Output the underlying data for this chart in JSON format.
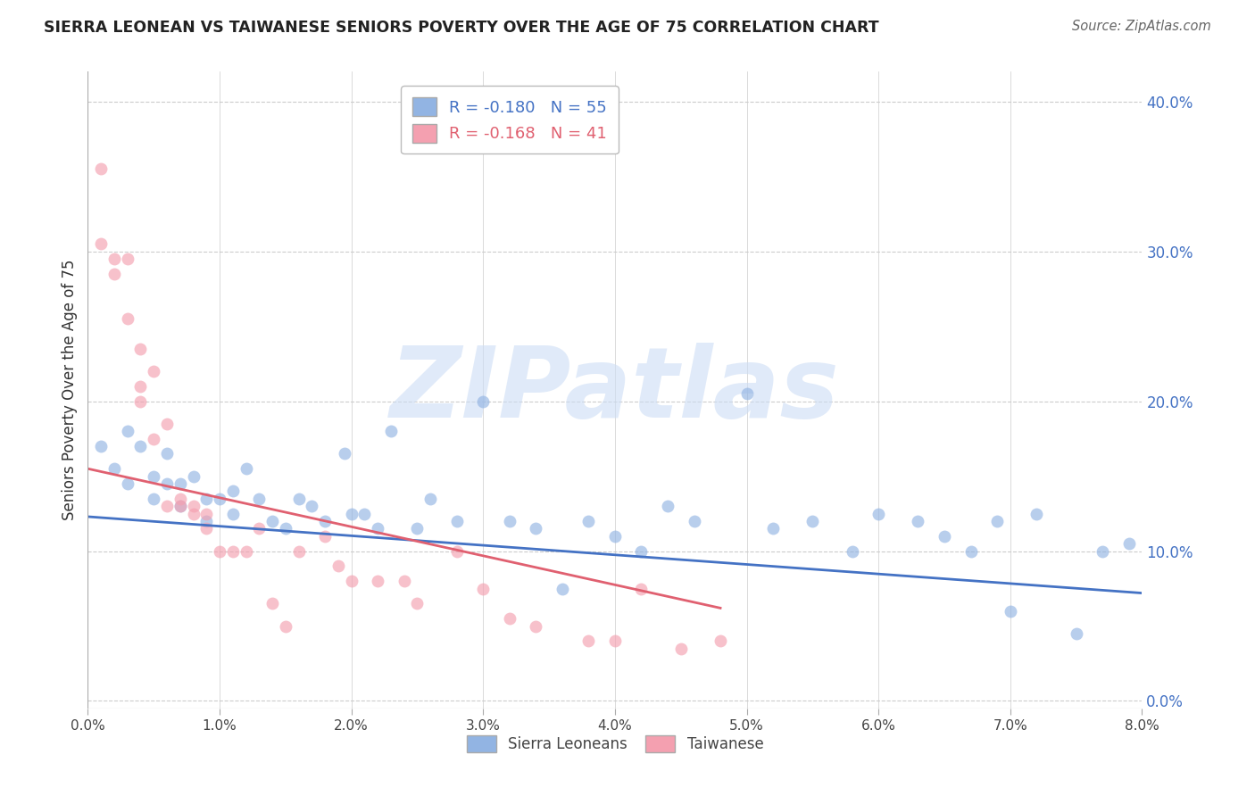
{
  "title": "SIERRA LEONEAN VS TAIWANESE SENIORS POVERTY OVER THE AGE OF 75 CORRELATION CHART",
  "source": "Source: ZipAtlas.com",
  "ylabel": "Seniors Poverty Over the Age of 75",
  "xlim": [
    0.0,
    0.08
  ],
  "ylim": [
    -0.005,
    0.42
  ],
  "xticks": [
    0.0,
    0.01,
    0.02,
    0.03,
    0.04,
    0.05,
    0.06,
    0.07,
    0.08
  ],
  "xtick_labels": [
    "0.0%",
    "1.0%",
    "2.0%",
    "3.0%",
    "4.0%",
    "5.0%",
    "6.0%",
    "7.0%",
    "8.0%"
  ],
  "yticks_right": [
    0.0,
    0.1,
    0.2,
    0.3,
    0.4
  ],
  "ytick_right_labels": [
    "0.0%",
    "10.0%",
    "20.0%",
    "30.0%",
    "40.0%"
  ],
  "blue_R": -0.18,
  "blue_N": 55,
  "pink_R": -0.168,
  "pink_N": 41,
  "blue_color": "#92b4e3",
  "pink_color": "#f4a0b0",
  "blue_line_color": "#4472c4",
  "pink_line_color": "#e06070",
  "grid_color": "#cccccc",
  "title_color": "#222222",
  "right_tick_color": "#4472c4",
  "watermark_color": "#ccddf5",
  "watermark_text": "ZIPatlas",
  "blue_points_x": [
    0.001,
    0.002,
    0.003,
    0.003,
    0.004,
    0.005,
    0.005,
    0.006,
    0.006,
    0.007,
    0.007,
    0.008,
    0.009,
    0.009,
    0.01,
    0.011,
    0.011,
    0.012,
    0.013,
    0.014,
    0.015,
    0.016,
    0.017,
    0.018,
    0.0195,
    0.02,
    0.021,
    0.022,
    0.023,
    0.025,
    0.026,
    0.028,
    0.03,
    0.032,
    0.034,
    0.036,
    0.038,
    0.04,
    0.042,
    0.044,
    0.046,
    0.05,
    0.052,
    0.055,
    0.058,
    0.06,
    0.063,
    0.065,
    0.067,
    0.069,
    0.07,
    0.072,
    0.075,
    0.077,
    0.079
  ],
  "blue_points_y": [
    0.17,
    0.155,
    0.18,
    0.145,
    0.17,
    0.135,
    0.15,
    0.145,
    0.165,
    0.13,
    0.145,
    0.15,
    0.12,
    0.135,
    0.135,
    0.14,
    0.125,
    0.155,
    0.135,
    0.12,
    0.115,
    0.135,
    0.13,
    0.12,
    0.165,
    0.125,
    0.125,
    0.115,
    0.18,
    0.115,
    0.135,
    0.12,
    0.2,
    0.12,
    0.115,
    0.075,
    0.12,
    0.11,
    0.1,
    0.13,
    0.12,
    0.205,
    0.115,
    0.12,
    0.1,
    0.125,
    0.12,
    0.11,
    0.1,
    0.12,
    0.06,
    0.125,
    0.045,
    0.1,
    0.105
  ],
  "pink_points_x": [
    0.001,
    0.001,
    0.002,
    0.002,
    0.003,
    0.003,
    0.004,
    0.004,
    0.004,
    0.005,
    0.005,
    0.006,
    0.006,
    0.007,
    0.007,
    0.008,
    0.008,
    0.009,
    0.009,
    0.01,
    0.011,
    0.012,
    0.013,
    0.014,
    0.015,
    0.016,
    0.018,
    0.019,
    0.02,
    0.022,
    0.024,
    0.025,
    0.028,
    0.03,
    0.032,
    0.034,
    0.038,
    0.04,
    0.042,
    0.045,
    0.048
  ],
  "pink_points_y": [
    0.355,
    0.305,
    0.295,
    0.285,
    0.295,
    0.255,
    0.235,
    0.2,
    0.21,
    0.22,
    0.175,
    0.13,
    0.185,
    0.135,
    0.13,
    0.13,
    0.125,
    0.115,
    0.125,
    0.1,
    0.1,
    0.1,
    0.115,
    0.065,
    0.05,
    0.1,
    0.11,
    0.09,
    0.08,
    0.08,
    0.08,
    0.065,
    0.1,
    0.075,
    0.055,
    0.05,
    0.04,
    0.04,
    0.075,
    0.035,
    0.04
  ],
  "blue_trend_x": [
    0.0,
    0.08
  ],
  "blue_trend_y": [
    0.123,
    0.072
  ],
  "pink_trend_x": [
    0.0,
    0.048
  ],
  "pink_trend_y": [
    0.155,
    0.062
  ]
}
